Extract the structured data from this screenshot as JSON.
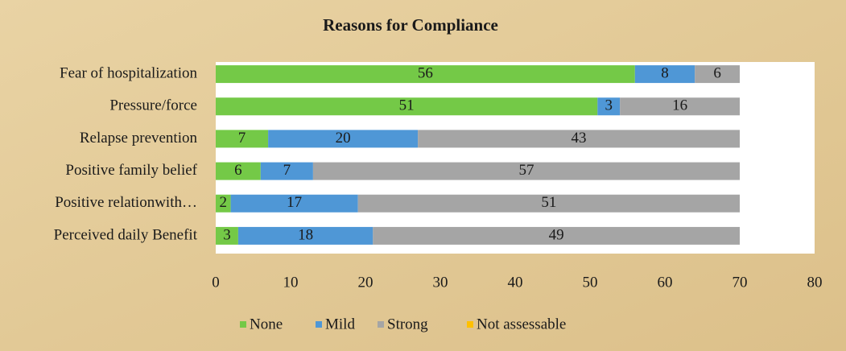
{
  "chart_data": {
    "type": "stacked_bar_horizontal",
    "title": "Reasons for Compliance",
    "categories": [
      "Fear of hospitalization",
      "Pressure/force",
      "Relapse prevention",
      "Positive family belief",
      "Positive relationwith…",
      "Perceived daily Benefit"
    ],
    "series": [
      {
        "name": "None",
        "color": "#74c947",
        "values": [
          56,
          51,
          7,
          6,
          2,
          3
        ]
      },
      {
        "name": "Mild",
        "color": "#4f97d6",
        "values": [
          8,
          3,
          20,
          7,
          17,
          18
        ]
      },
      {
        "name": "Strong",
        "color": "#a5a5a5",
        "values": [
          6,
          16,
          43,
          57,
          51,
          49
        ]
      },
      {
        "name": "Not assessable",
        "color": "#ffc000",
        "values": [
          0,
          0,
          0,
          0,
          0,
          0
        ]
      }
    ],
    "xlim": [
      0,
      80
    ],
    "xticks": [
      0,
      10,
      20,
      30,
      40,
      50,
      60,
      70,
      80
    ],
    "grid": false,
    "legend": "bottom"
  }
}
